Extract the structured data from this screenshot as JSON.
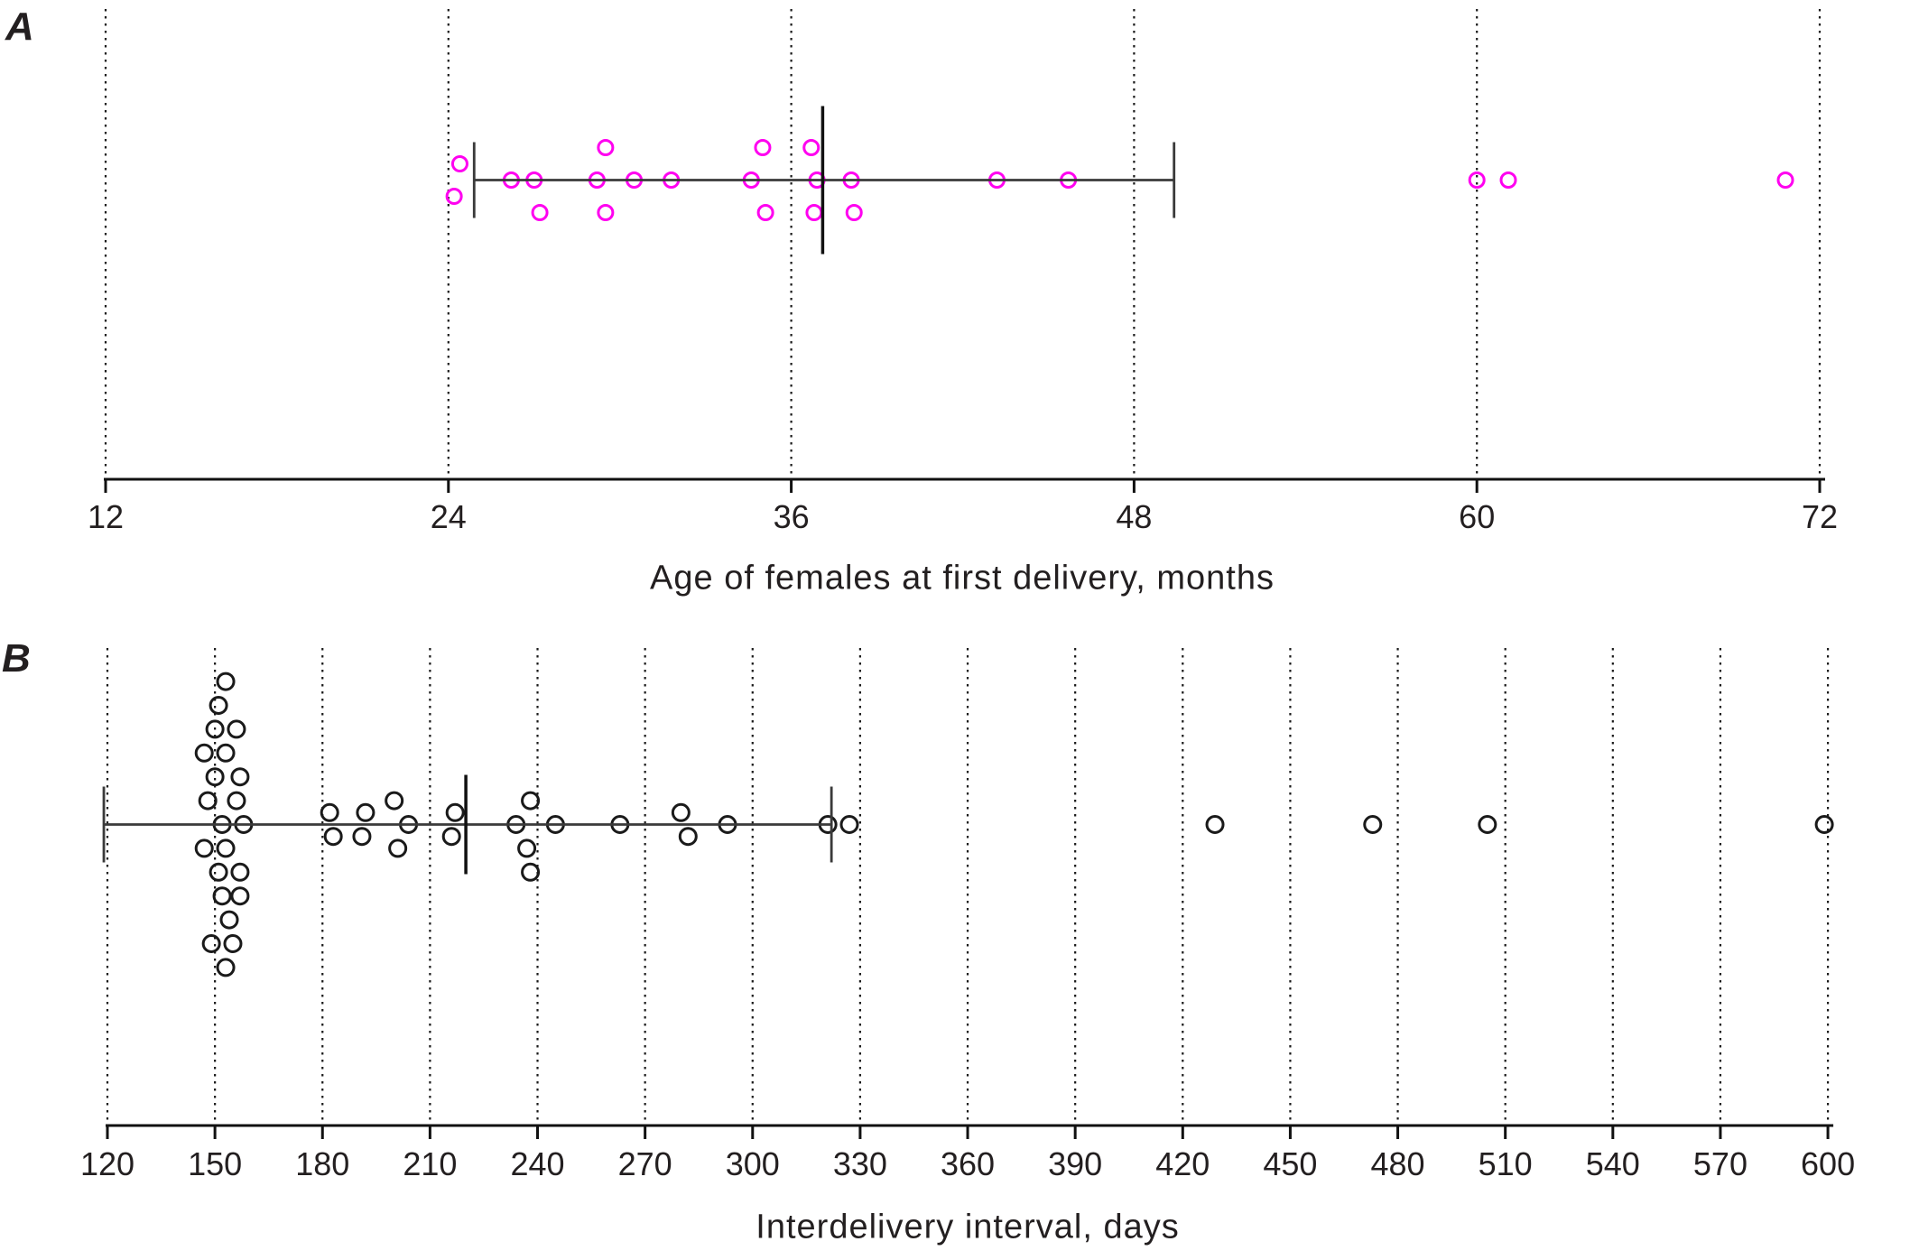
{
  "figure": {
    "background": "#ffffff"
  },
  "panels": [
    {
      "label": "A",
      "xlabel": "Age of females at first delivery, months"
    },
    {
      "label": "B",
      "xlabel": "Interdelivery interval, days"
    }
  ],
  "chart_data": [
    {
      "type": "strip",
      "panel": "A",
      "title": "",
      "xlabel": "Age of females at first delivery, months",
      "axis": {
        "min": 12,
        "max": 72,
        "ticks": [
          12,
          24,
          36,
          48,
          60,
          72
        ],
        "grid": "dotted-vertical"
      },
      "marker": "open-circle",
      "marker_color": "#FF00F0",
      "line_color": "#3a3a3a",
      "summary": {
        "mean": 37.1,
        "whisker_low": 24.9,
        "whisker_high": 49.4
      },
      "points": [
        [
          24.4,
          -1
        ],
        [
          24.2,
          1
        ],
        [
          26.2,
          0
        ],
        [
          27.0,
          0
        ],
        [
          27.2,
          2
        ],
        [
          29.5,
          -2
        ],
        [
          29.2,
          0
        ],
        [
          29.5,
          2
        ],
        [
          30.5,
          0
        ],
        [
          31.8,
          0
        ],
        [
          34.6,
          0
        ],
        [
          35.0,
          -2
        ],
        [
          35.1,
          2
        ],
        [
          36.7,
          -2
        ],
        [
          36.9,
          0
        ],
        [
          36.8,
          2
        ],
        [
          38.1,
          0
        ],
        [
          38.2,
          2
        ],
        [
          43.2,
          0
        ],
        [
          45.7,
          0
        ],
        [
          60.0,
          0
        ],
        [
          61.1,
          0
        ],
        [
          70.8,
          0
        ]
      ]
    },
    {
      "type": "strip",
      "panel": "B",
      "title": "",
      "xlabel": "Interdelivery interval, days",
      "axis": {
        "min": 120,
        "max": 600,
        "ticks": [
          120,
          150,
          180,
          210,
          240,
          270,
          300,
          330,
          360,
          390,
          420,
          450,
          480,
          510,
          540,
          570,
          600
        ],
        "grid": "dotted-vertical"
      },
      "marker": "open-circle",
      "marker_color": "#1a1a1a",
      "line_color": "#3a3a3a",
      "summary": {
        "mean": 220,
        "whisker_low": 119,
        "whisker_high": 322
      },
      "points": [
        [
          153,
          -6
        ],
        [
          151,
          -5
        ],
        [
          150,
          -4
        ],
        [
          156,
          -4
        ],
        [
          147,
          -3
        ],
        [
          153,
          -3
        ],
        [
          150,
          -2
        ],
        [
          157,
          -2
        ],
        [
          148,
          -1
        ],
        [
          156,
          -1
        ],
        [
          152,
          0
        ],
        [
          158,
          0
        ],
        [
          147,
          1
        ],
        [
          153,
          1
        ],
        [
          151,
          2
        ],
        [
          157,
          2
        ],
        [
          152,
          3
        ],
        [
          157,
          3
        ],
        [
          154,
          4
        ],
        [
          149,
          5
        ],
        [
          155,
          5
        ],
        [
          153,
          6
        ],
        [
          182,
          -0.5
        ],
        [
          183,
          0.5
        ],
        [
          192,
          -0.5
        ],
        [
          191,
          0.5
        ],
        [
          200,
          -1
        ],
        [
          204,
          0
        ],
        [
          201,
          1
        ],
        [
          217,
          -0.5
        ],
        [
          216,
          0.5
        ],
        [
          238,
          -1
        ],
        [
          234,
          0
        ],
        [
          237,
          1
        ],
        [
          238,
          2
        ],
        [
          245,
          0
        ],
        [
          263,
          0
        ],
        [
          280,
          -0.5
        ],
        [
          282,
          0.5
        ],
        [
          293,
          0
        ],
        [
          321,
          0
        ],
        [
          327,
          0
        ],
        [
          429,
          0
        ],
        [
          473,
          0
        ],
        [
          505,
          0
        ],
        [
          599,
          0
        ]
      ]
    }
  ]
}
